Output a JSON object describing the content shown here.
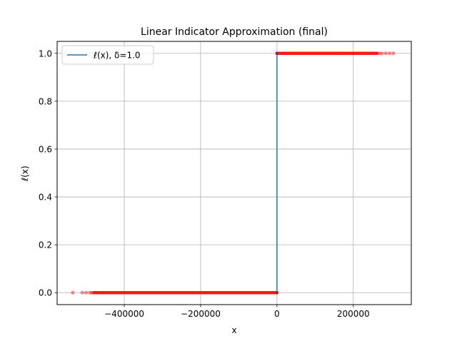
{
  "chart_data": {
    "type": "line",
    "title": "Linear Indicator Approximation (final)",
    "xlabel": "x",
    "ylabel": "ℓ(x)",
    "xlim": [
      -576000,
      352000
    ],
    "ylim": [
      -0.05,
      1.05
    ],
    "x_ticks": [
      -400000,
      -200000,
      0,
      200000
    ],
    "x_tick_labels": [
      "−400000",
      "−200000",
      "0",
      "200000"
    ],
    "y_ticks": [
      0.0,
      0.2,
      0.4,
      0.6,
      0.8,
      1.0
    ],
    "y_tick_labels": [
      "0.0",
      "0.2",
      "0.4",
      "0.6",
      "0.8",
      "1.0"
    ],
    "grid": true,
    "legend_position": "top-left",
    "series": [
      {
        "name": "ℓ(x), δ=1.0",
        "kind": "line",
        "color": "#1f77b4",
        "x": [
          -1,
          0,
          1
        ],
        "y": [
          0,
          0,
          1
        ]
      },
      {
        "kind": "scatter",
        "color": "#ff0000",
        "clusters": [
          {
            "y": 0,
            "x_dense_range": [
              -480000,
              0
            ],
            "x_sparse": [
              -535000,
              -510000,
              -500000,
              -490000,
              -485000
            ]
          },
          {
            "y": 1,
            "x_dense_range": [
              0,
              262000
            ],
            "x_sparse": [
              268000,
              275000,
              285000,
              295000,
              305000
            ]
          }
        ]
      }
    ]
  }
}
